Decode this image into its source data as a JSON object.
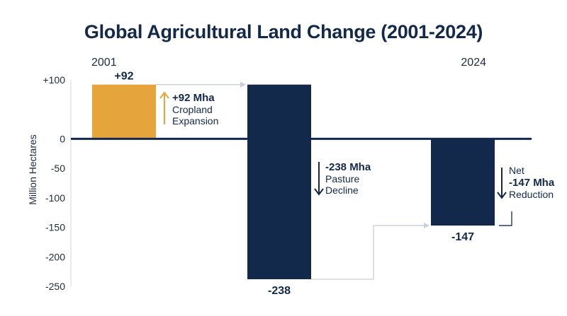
{
  "chart_data": {
    "type": "bar",
    "title": "Global Agricultural Land Change (2001-2024)",
    "ylabel": "Million Hectares",
    "ylim": [
      -250,
      100
    ],
    "y_ticks": [
      "+100",
      "0",
      "-50",
      "-100",
      "-150",
      "-200",
      "-250"
    ],
    "start_label": "2001",
    "end_label": "2024",
    "bars": [
      {
        "value": 92,
        "label": "+92",
        "color": "#e6a43c"
      },
      {
        "value": -238,
        "label": "-238",
        "color": "#13294b"
      },
      {
        "value": -147,
        "label": "-147",
        "color": "#13294b"
      }
    ],
    "annotations": [
      {
        "bold": "+92 Mha",
        "lines": [
          "Cropland",
          "Expansion"
        ],
        "arrow": "up",
        "color": "#e6a43c"
      },
      {
        "bold": "-238 Mha",
        "lines": [
          "Pasture",
          "Decline"
        ],
        "arrow": "down",
        "color": "#13294b"
      },
      {
        "pre": "Net",
        "bold": "-147 Mha",
        "lines": [
          "Reduction"
        ],
        "arrow": "down",
        "color": "#13294b"
      }
    ],
    "colors": {
      "axis": "#13294b",
      "connector": "#c9ced6",
      "text": "#1f2a3a"
    }
  }
}
